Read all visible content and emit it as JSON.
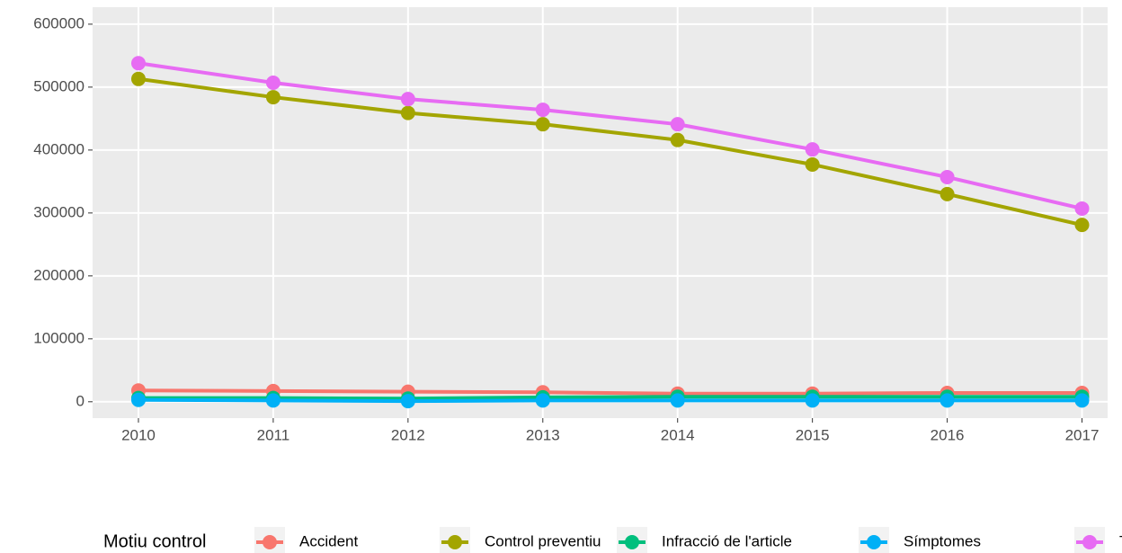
{
  "chart_data": {
    "type": "line",
    "x": [
      2010,
      2011,
      2012,
      2013,
      2014,
      2015,
      2016,
      2017
    ],
    "series": [
      {
        "name": "Accident",
        "color": "#F8766D",
        "values": [
          18000,
          17000,
          16000,
          15000,
          13000,
          13000,
          14000,
          14000
        ]
      },
      {
        "name": "Control preventiu",
        "color": "#A3A500",
        "values": [
          513000,
          484000,
          459000,
          441000,
          416000,
          377000,
          330000,
          281000
        ]
      },
      {
        "name": "Infracció de l'article",
        "color": "#00BF7D",
        "values": [
          6000,
          6000,
          5000,
          7000,
          8000,
          8000,
          8000,
          8000
        ]
      },
      {
        "name": "Símptomes",
        "color": "#00B0F6",
        "values": [
          3000,
          2000,
          1000,
          2000,
          2000,
          2000,
          2000,
          2000
        ]
      },
      {
        "name": "Total",
        "color": "#E76BF3",
        "values": [
          538000,
          507000,
          481000,
          464000,
          441000,
          401000,
          357000,
          307000
        ]
      }
    ],
    "legend_title": "Motiu control",
    "legend": "bottom",
    "xlim": [
      2009.66,
      2017.19
    ],
    "xticks": [
      2010,
      2011,
      2012,
      2013,
      2014,
      2015,
      2016,
      2017
    ],
    "ylim": [
      -26000,
      627000
    ],
    "yticks": [
      0,
      100000,
      200000,
      300000,
      400000,
      500000,
      600000
    ],
    "grid": true
  }
}
